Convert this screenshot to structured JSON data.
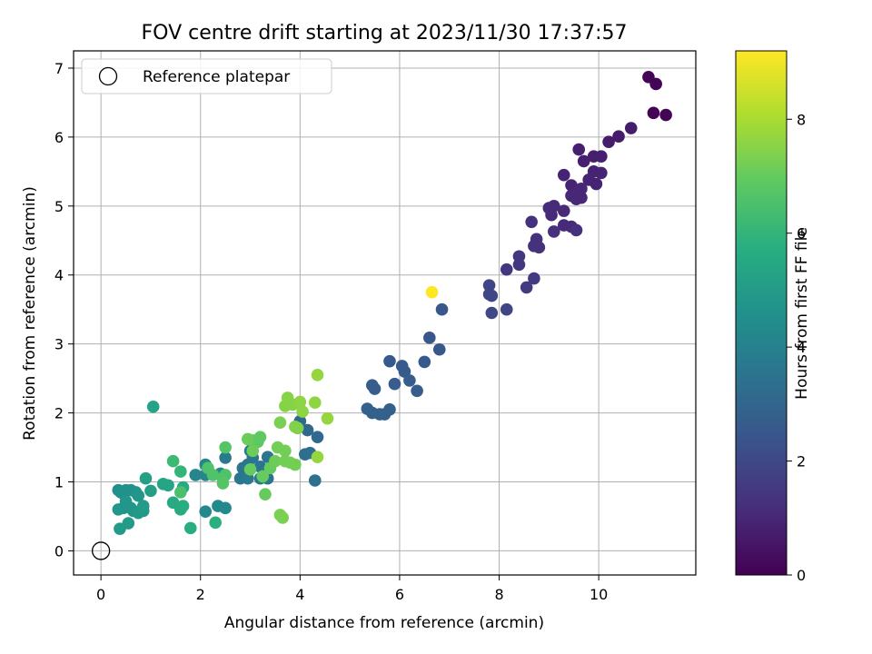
{
  "chart_data": {
    "type": "scatter",
    "title": "FOV centre drift starting at 2023/11/30 17:37:57",
    "xlabel": "Angular distance from reference (arcmin)",
    "ylabel": "Rotation from reference (arcmin)",
    "xlim": [
      -0.55,
      11.95
    ],
    "ylim": [
      -0.35,
      7.25
    ],
    "xticks": [
      0,
      2,
      4,
      6,
      8,
      10
    ],
    "yticks": [
      0,
      1,
      2,
      3,
      4,
      5,
      6,
      7
    ],
    "grid": true,
    "legend": {
      "position": "top-left",
      "entries": [
        {
          "label": "Reference platepar",
          "marker": "open-circle"
        }
      ]
    },
    "reference_point": {
      "x": 0,
      "y": 0
    },
    "colorbar": {
      "label": "Hours from first FF file",
      "colormap": "viridis",
      "range": [
        0,
        9.2
      ],
      "ticks": [
        0,
        2,
        4,
        6,
        8
      ]
    },
    "points": [
      {
        "x": 11.0,
        "y": 6.87,
        "c": 0.1
      },
      {
        "x": 11.15,
        "y": 6.77,
        "c": 0.1
      },
      {
        "x": 11.1,
        "y": 6.35,
        "c": 0.1
      },
      {
        "x": 11.35,
        "y": 6.32,
        "c": 0.1
      },
      {
        "x": 10.65,
        "y": 6.13,
        "c": 0.7
      },
      {
        "x": 10.4,
        "y": 6.01,
        "c": 0.7
      },
      {
        "x": 10.2,
        "y": 5.93,
        "c": 0.7
      },
      {
        "x": 9.6,
        "y": 5.82,
        "c": 0.8
      },
      {
        "x": 9.9,
        "y": 5.72,
        "c": 0.8
      },
      {
        "x": 10.05,
        "y": 5.72,
        "c": 0.8
      },
      {
        "x": 9.7,
        "y": 5.65,
        "c": 0.8
      },
      {
        "x": 9.9,
        "y": 5.5,
        "c": 0.9
      },
      {
        "x": 10.05,
        "y": 5.48,
        "c": 0.9
      },
      {
        "x": 9.3,
        "y": 5.45,
        "c": 0.9
      },
      {
        "x": 9.8,
        "y": 5.38,
        "c": 0.9
      },
      {
        "x": 9.95,
        "y": 5.32,
        "c": 0.9
      },
      {
        "x": 9.45,
        "y": 5.3,
        "c": 0.9
      },
      {
        "x": 9.55,
        "y": 5.2,
        "c": 1.0
      },
      {
        "x": 9.65,
        "y": 5.25,
        "c": 1.0
      },
      {
        "x": 9.45,
        "y": 5.15,
        "c": 1.0
      },
      {
        "x": 9.55,
        "y": 5.1,
        "c": 1.0
      },
      {
        "x": 9.65,
        "y": 5.12,
        "c": 1.0
      },
      {
        "x": 9.1,
        "y": 5.0,
        "c": 1.1
      },
      {
        "x": 9.0,
        "y": 4.97,
        "c": 1.1
      },
      {
        "x": 9.3,
        "y": 4.93,
        "c": 1.1
      },
      {
        "x": 9.05,
        "y": 4.87,
        "c": 1.1
      },
      {
        "x": 9.3,
        "y": 4.72,
        "c": 1.1
      },
      {
        "x": 9.45,
        "y": 4.7,
        "c": 1.1
      },
      {
        "x": 9.1,
        "y": 4.63,
        "c": 1.2
      },
      {
        "x": 9.55,
        "y": 4.65,
        "c": 1.2
      },
      {
        "x": 8.65,
        "y": 4.77,
        "c": 1.3
      },
      {
        "x": 8.75,
        "y": 4.52,
        "c": 1.3
      },
      {
        "x": 8.7,
        "y": 4.42,
        "c": 1.3
      },
      {
        "x": 8.8,
        "y": 4.4,
        "c": 1.3
      },
      {
        "x": 8.4,
        "y": 4.27,
        "c": 1.5
      },
      {
        "x": 8.4,
        "y": 4.15,
        "c": 1.5
      },
      {
        "x": 8.15,
        "y": 4.08,
        "c": 1.5
      },
      {
        "x": 8.7,
        "y": 3.95,
        "c": 1.6
      },
      {
        "x": 8.55,
        "y": 3.82,
        "c": 1.6
      },
      {
        "x": 7.8,
        "y": 3.85,
        "c": 1.9
      },
      {
        "x": 7.8,
        "y": 3.72,
        "c": 1.9
      },
      {
        "x": 7.85,
        "y": 3.7,
        "c": 1.9
      },
      {
        "x": 8.15,
        "y": 3.5,
        "c": 1.9
      },
      {
        "x": 7.85,
        "y": 3.45,
        "c": 2.0
      },
      {
        "x": 6.65,
        "y": 3.75,
        "c": 9.2
      },
      {
        "x": 6.85,
        "y": 3.5,
        "c": 2.5
      },
      {
        "x": 6.6,
        "y": 3.09,
        "c": 2.5
      },
      {
        "x": 6.8,
        "y": 2.92,
        "c": 2.5
      },
      {
        "x": 5.8,
        "y": 2.75,
        "c": 2.6
      },
      {
        "x": 6.5,
        "y": 2.74,
        "c": 2.6
      },
      {
        "x": 6.05,
        "y": 2.68,
        "c": 2.6
      },
      {
        "x": 6.1,
        "y": 2.6,
        "c": 2.6
      },
      {
        "x": 6.2,
        "y": 2.47,
        "c": 2.7
      },
      {
        "x": 5.9,
        "y": 2.42,
        "c": 2.7
      },
      {
        "x": 5.45,
        "y": 2.4,
        "c": 2.7
      },
      {
        "x": 5.5,
        "y": 2.35,
        "c": 2.7
      },
      {
        "x": 6.35,
        "y": 2.32,
        "c": 2.7
      },
      {
        "x": 5.35,
        "y": 2.06,
        "c": 2.8
      },
      {
        "x": 5.8,
        "y": 2.05,
        "c": 2.8
      },
      {
        "x": 5.45,
        "y": 2.0,
        "c": 2.8
      },
      {
        "x": 5.6,
        "y": 1.98,
        "c": 2.8
      },
      {
        "x": 5.7,
        "y": 1.98,
        "c": 2.8
      },
      {
        "x": 4.0,
        "y": 1.88,
        "c": 3.1
      },
      {
        "x": 4.15,
        "y": 1.75,
        "c": 3.1
      },
      {
        "x": 4.35,
        "y": 1.65,
        "c": 3.1
      },
      {
        "x": 4.1,
        "y": 1.4,
        "c": 3.3
      },
      {
        "x": 4.2,
        "y": 1.42,
        "c": 3.3
      },
      {
        "x": 4.3,
        "y": 1.02,
        "c": 3.4
      },
      {
        "x": 3.35,
        "y": 1.36,
        "c": 3.6
      },
      {
        "x": 3.2,
        "y": 1.22,
        "c": 3.6
      },
      {
        "x": 2.95,
        "y": 1.25,
        "c": 3.6
      },
      {
        "x": 3.05,
        "y": 1.35,
        "c": 3.6
      },
      {
        "x": 3.35,
        "y": 1.05,
        "c": 3.6
      },
      {
        "x": 2.8,
        "y": 1.05,
        "c": 3.6
      },
      {
        "x": 2.85,
        "y": 1.2,
        "c": 3.6
      },
      {
        "x": 3.0,
        "y": 1.45,
        "c": 3.7
      },
      {
        "x": 2.5,
        "y": 1.35,
        "c": 3.7
      },
      {
        "x": 2.95,
        "y": 1.05,
        "c": 3.7
      },
      {
        "x": 3.2,
        "y": 1.05,
        "c": 3.7
      },
      {
        "x": 2.1,
        "y": 1.25,
        "c": 4.2
      },
      {
        "x": 2.1,
        "y": 1.1,
        "c": 4.2
      },
      {
        "x": 1.9,
        "y": 1.1,
        "c": 4.2
      },
      {
        "x": 2.4,
        "y": 1.12,
        "c": 4.3
      },
      {
        "x": 2.35,
        "y": 0.65,
        "c": 4.3
      },
      {
        "x": 2.5,
        "y": 0.62,
        "c": 4.3
      },
      {
        "x": 2.1,
        "y": 0.57,
        "c": 4.3
      },
      {
        "x": 0.35,
        "y": 0.88,
        "c": 4.5
      },
      {
        "x": 0.4,
        "y": 0.85,
        "c": 4.6
      },
      {
        "x": 0.45,
        "y": 0.83,
        "c": 4.6
      },
      {
        "x": 0.5,
        "y": 0.88,
        "c": 4.6
      },
      {
        "x": 0.6,
        "y": 0.88,
        "c": 4.6
      },
      {
        "x": 0.7,
        "y": 0.85,
        "c": 4.7
      },
      {
        "x": 0.75,
        "y": 0.8,
        "c": 4.8
      },
      {
        "x": 0.5,
        "y": 0.72,
        "c": 4.8
      },
      {
        "x": 0.35,
        "y": 0.6,
        "c": 4.8
      },
      {
        "x": 0.45,
        "y": 0.62,
        "c": 4.8
      },
      {
        "x": 0.6,
        "y": 0.62,
        "c": 4.8
      },
      {
        "x": 0.65,
        "y": 0.58,
        "c": 4.8
      },
      {
        "x": 0.75,
        "y": 0.55,
        "c": 4.9
      },
      {
        "x": 0.85,
        "y": 0.58,
        "c": 4.9
      },
      {
        "x": 0.55,
        "y": 0.4,
        "c": 5.0
      },
      {
        "x": 0.38,
        "y": 0.32,
        "c": 5.0
      },
      {
        "x": 0.85,
        "y": 0.65,
        "c": 5.0
      },
      {
        "x": 1.0,
        "y": 0.87,
        "c": 5.1
      },
      {
        "x": 0.9,
        "y": 1.05,
        "c": 5.2
      },
      {
        "x": 1.05,
        "y": 2.09,
        "c": 5.3
      },
      {
        "x": 1.25,
        "y": 0.97,
        "c": 5.4
      },
      {
        "x": 1.35,
        "y": 0.95,
        "c": 5.4
      },
      {
        "x": 1.45,
        "y": 0.7,
        "c": 5.6
      },
      {
        "x": 1.65,
        "y": 0.92,
        "c": 5.6
      },
      {
        "x": 1.6,
        "y": 0.6,
        "c": 5.6
      },
      {
        "x": 1.65,
        "y": 0.65,
        "c": 5.7
      },
      {
        "x": 1.8,
        "y": 0.33,
        "c": 5.7
      },
      {
        "x": 2.3,
        "y": 0.41,
        "c": 5.8
      },
      {
        "x": 1.6,
        "y": 1.15,
        "c": 6.0
      },
      {
        "x": 1.45,
        "y": 1.3,
        "c": 6.2
      },
      {
        "x": 1.6,
        "y": 0.85,
        "c": 6.5
      },
      {
        "x": 2.15,
        "y": 1.2,
        "c": 6.6
      },
      {
        "x": 2.25,
        "y": 1.1,
        "c": 6.6
      },
      {
        "x": 2.45,
        "y": 1.05,
        "c": 6.6
      },
      {
        "x": 2.5,
        "y": 1.1,
        "c": 6.6
      },
      {
        "x": 2.45,
        "y": 0.98,
        "c": 6.7
      },
      {
        "x": 2.5,
        "y": 1.5,
        "c": 6.7
      },
      {
        "x": 3.05,
        "y": 1.6,
        "c": 6.9
      },
      {
        "x": 3.15,
        "y": 1.58,
        "c": 6.9
      },
      {
        "x": 3.2,
        "y": 1.65,
        "c": 6.9
      },
      {
        "x": 3.25,
        "y": 1.08,
        "c": 7.0
      },
      {
        "x": 3.4,
        "y": 1.2,
        "c": 7.0
      },
      {
        "x": 3.3,
        "y": 0.82,
        "c": 7.0
      },
      {
        "x": 3.0,
        "y": 1.18,
        "c": 7.0
      },
      {
        "x": 2.95,
        "y": 1.62,
        "c": 7.1
      },
      {
        "x": 3.05,
        "y": 1.45,
        "c": 7.1
      },
      {
        "x": 3.5,
        "y": 1.3,
        "c": 7.1
      },
      {
        "x": 3.55,
        "y": 1.5,
        "c": 7.2
      },
      {
        "x": 3.7,
        "y": 1.45,
        "c": 7.2
      },
      {
        "x": 3.7,
        "y": 1.3,
        "c": 7.2
      },
      {
        "x": 3.8,
        "y": 1.28,
        "c": 7.2
      },
      {
        "x": 3.9,
        "y": 1.25,
        "c": 7.2
      },
      {
        "x": 3.6,
        "y": 1.86,
        "c": 7.3
      },
      {
        "x": 3.6,
        "y": 0.52,
        "c": 7.3
      },
      {
        "x": 3.65,
        "y": 0.48,
        "c": 7.3
      },
      {
        "x": 3.9,
        "y": 1.8,
        "c": 7.4
      },
      {
        "x": 3.95,
        "y": 1.78,
        "c": 7.4
      },
      {
        "x": 3.7,
        "y": 2.1,
        "c": 7.5
      },
      {
        "x": 3.75,
        "y": 2.22,
        "c": 7.5
      },
      {
        "x": 3.85,
        "y": 2.12,
        "c": 7.5
      },
      {
        "x": 4.0,
        "y": 2.16,
        "c": 7.6
      },
      {
        "x": 4.05,
        "y": 2.02,
        "c": 7.6
      },
      {
        "x": 4.3,
        "y": 2.15,
        "c": 7.6
      },
      {
        "x": 4.35,
        "y": 2.55,
        "c": 7.7
      },
      {
        "x": 4.55,
        "y": 1.92,
        "c": 7.7
      },
      {
        "x": 4.35,
        "y": 1.36,
        "c": 7.7
      }
    ]
  }
}
